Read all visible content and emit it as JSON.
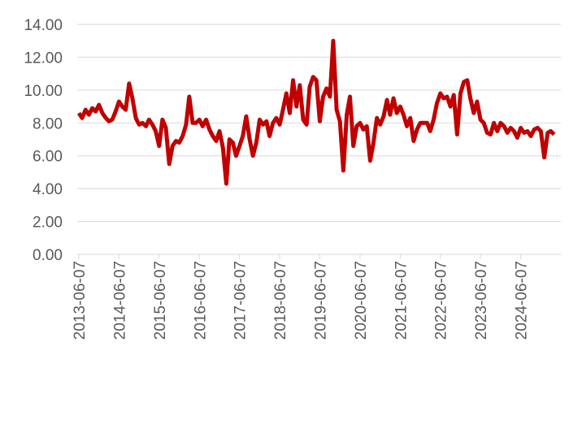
{
  "chart_data": {
    "type": "line",
    "x": [
      "2013-06-07",
      "2013-07-07",
      "2013-08-07",
      "2013-09-07",
      "2013-10-07",
      "2013-11-07",
      "2013-12-07",
      "2014-01-07",
      "2014-02-07",
      "2014-03-07",
      "2014-04-07",
      "2014-05-07",
      "2014-06-07",
      "2014-07-07",
      "2014-08-07",
      "2014-09-07",
      "2014-10-07",
      "2014-11-07",
      "2014-12-07",
      "2015-01-07",
      "2015-02-07",
      "2015-03-07",
      "2015-04-07",
      "2015-05-07",
      "2015-06-07",
      "2015-07-07",
      "2015-08-07",
      "2015-09-07",
      "2015-10-07",
      "2015-11-07",
      "2015-12-07",
      "2016-01-07",
      "2016-02-07",
      "2016-03-07",
      "2016-04-07",
      "2016-05-07",
      "2016-06-07",
      "2016-07-07",
      "2016-08-07",
      "2016-09-07",
      "2016-10-07",
      "2016-11-07",
      "2016-12-07",
      "2017-01-07",
      "2017-02-07",
      "2017-03-07",
      "2017-04-07",
      "2017-05-07",
      "2017-06-07",
      "2017-07-07",
      "2017-08-07",
      "2017-09-07",
      "2017-10-07",
      "2017-11-07",
      "2017-12-07",
      "2018-01-07",
      "2018-02-07",
      "2018-03-07",
      "2018-04-07",
      "2018-05-07",
      "2018-06-07",
      "2018-07-07",
      "2018-08-07",
      "2018-09-07",
      "2018-10-07",
      "2018-11-07",
      "2018-12-07",
      "2019-01-07",
      "2019-02-07",
      "2019-03-07",
      "2019-04-07",
      "2019-05-07",
      "2019-06-07",
      "2019-07-07",
      "2019-08-07",
      "2019-09-07",
      "2019-10-07",
      "2019-11-07",
      "2019-12-07",
      "2020-01-07",
      "2020-02-07",
      "2020-03-07",
      "2020-04-07",
      "2020-05-07",
      "2020-06-07",
      "2020-07-07",
      "2020-08-07",
      "2020-09-07",
      "2020-10-07",
      "2020-11-07",
      "2020-12-07",
      "2021-01-07",
      "2021-02-07",
      "2021-03-07",
      "2021-04-07",
      "2021-05-07",
      "2021-06-07",
      "2021-07-07",
      "2021-08-07",
      "2021-09-07",
      "2021-10-07",
      "2021-11-07",
      "2021-12-07",
      "2022-01-07",
      "2022-02-07",
      "2022-03-07",
      "2022-04-07",
      "2022-05-07",
      "2022-06-07",
      "2022-07-07",
      "2022-08-07",
      "2022-09-07",
      "2022-10-07",
      "2022-11-07",
      "2022-12-07",
      "2023-01-07",
      "2023-02-07",
      "2023-03-07",
      "2023-04-07",
      "2023-05-07",
      "2023-06-07",
      "2023-07-07",
      "2023-08-07",
      "2023-09-07",
      "2023-10-07",
      "2023-11-07",
      "2023-12-07",
      "2024-01-07",
      "2024-02-07",
      "2024-03-07",
      "2024-04-07",
      "2024-05-07",
      "2024-06-07",
      "2024-07-07",
      "2024-08-07",
      "2024-09-07",
      "2024-10-07",
      "2024-11-07",
      "2024-12-07",
      "2025-01-07",
      "2025-02-07",
      "2025-03-07",
      "2025-04-07"
    ],
    "series": [
      {
        "color": "#c00000",
        "values": [
          8.6,
          8.3,
          8.8,
          8.5,
          8.9,
          8.7,
          9.1,
          8.6,
          8.3,
          8.1,
          8.2,
          8.7,
          9.3,
          9.0,
          8.8,
          10.4,
          9.5,
          8.3,
          7.9,
          8.0,
          7.8,
          8.2,
          7.9,
          7.5,
          6.6,
          8.2,
          7.7,
          5.5,
          6.6,
          6.9,
          6.8,
          7.2,
          7.9,
          9.6,
          8.0,
          8.0,
          8.2,
          7.8,
          8.2,
          7.6,
          7.2,
          6.9,
          7.5,
          6.5,
          4.3,
          7.0,
          6.8,
          6.0,
          6.6,
          7.2,
          8.4,
          7.0,
          6.0,
          6.8,
          8.2,
          7.9,
          8.1,
          7.2,
          8.0,
          8.3,
          7.9,
          8.8,
          9.8,
          8.6,
          10.6,
          9.0,
          10.3,
          8.2,
          7.9,
          10.2,
          10.8,
          10.6,
          8.1,
          9.6,
          10.1,
          9.6,
          13.0,
          8.8,
          8.1,
          5.1,
          8.5,
          9.6,
          6.6,
          7.8,
          8.0,
          7.6,
          7.8,
          5.7,
          6.8,
          8.3,
          7.9,
          8.4,
          9.4,
          8.5,
          9.5,
          8.6,
          9.0,
          8.5,
          7.8,
          8.3,
          6.9,
          7.6,
          8.0,
          8.0,
          8.0,
          7.5,
          8.2,
          9.2,
          9.8,
          9.5,
          9.6,
          9.0,
          9.7,
          7.3,
          9.8,
          10.5,
          10.6,
          9.5,
          8.6,
          9.3,
          8.2,
          8.0,
          7.4,
          7.3,
          8.0,
          7.5,
          8.0,
          7.8,
          7.4,
          7.7,
          7.5,
          7.1,
          7.7,
          7.4,
          7.5,
          7.2,
          7.6,
          7.7,
          7.5,
          5.9,
          7.4,
          7.5,
          7.3
        ]
      }
    ],
    "xlim": [
      "2013-06-07",
      "2025-06-07"
    ],
    "xticks": [
      "2013-06-07",
      "2014-06-07",
      "2015-06-07",
      "2016-06-07",
      "2017-06-07",
      "2018-06-07",
      "2019-06-07",
      "2020-06-07",
      "2021-06-07",
      "2022-06-07",
      "2023-06-07",
      "2024-06-07"
    ],
    "ylim": [
      0,
      14
    ],
    "yticks": [
      {
        "value": 0,
        "label": "0.00"
      },
      {
        "value": 2,
        "label": "2.00"
      },
      {
        "value": 4,
        "label": "4.00"
      },
      {
        "value": 6,
        "label": "6.00"
      },
      {
        "value": 8,
        "label": "8.00"
      },
      {
        "value": 10,
        "label": "10.00"
      },
      {
        "value": 12,
        "label": "12.00"
      },
      {
        "value": 14,
        "label": "14.00"
      }
    ],
    "grid": true
  }
}
